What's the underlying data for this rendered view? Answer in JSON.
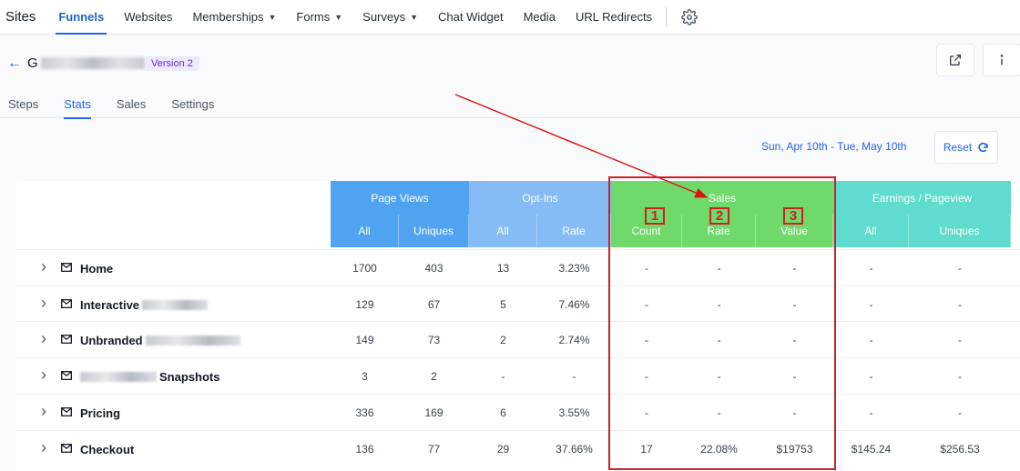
{
  "nav": {
    "brand": "Sites",
    "items": [
      {
        "label": "Funnels",
        "active": true,
        "dropdown": false
      },
      {
        "label": "Websites",
        "active": false,
        "dropdown": false
      },
      {
        "label": "Memberships",
        "active": false,
        "dropdown": true
      },
      {
        "label": "Forms",
        "active": false,
        "dropdown": true
      },
      {
        "label": "Surveys",
        "active": false,
        "dropdown": true
      },
      {
        "label": "Chat Widget",
        "active": false,
        "dropdown": false
      },
      {
        "label": "Media",
        "active": false,
        "dropdown": false
      },
      {
        "label": "URL Redirects",
        "active": false,
        "dropdown": false
      }
    ],
    "settings_icon": "gear-icon"
  },
  "header": {
    "back_icon": "arrow-left-icon",
    "funnel_name_initial": "G",
    "version_badge": "Version 2",
    "external_icon": "external-link-icon",
    "info_icon": "info-icon"
  },
  "subtabs": [
    {
      "label": "Steps",
      "active": false
    },
    {
      "label": "Stats",
      "active": true
    },
    {
      "label": "Sales",
      "active": false
    },
    {
      "label": "Settings",
      "active": false
    }
  ],
  "filters": {
    "date_range": "Sun, Apr 10th - Tue, May 10th",
    "reset_label": "Reset",
    "reset_icon": "refresh-icon"
  },
  "table": {
    "groups": [
      {
        "label": "Page Views",
        "color": "#4fa3f0",
        "sub": [
          "All",
          "Uniques"
        ]
      },
      {
        "label": "Opt-Ins",
        "color": "#86bcf5",
        "sub": [
          "All",
          "Rate"
        ]
      },
      {
        "label": "Sales",
        "color": "#6fd96a",
        "sub": [
          "Count",
          "Rate",
          "Value"
        ]
      },
      {
        "label": "Earnings / Pageview",
        "color": "#5fdccd",
        "sub": [
          "All",
          "Uniques"
        ]
      }
    ],
    "rows": [
      {
        "name": "Home",
        "values": [
          "1700",
          "403",
          "13",
          "3.23%",
          "-",
          "-",
          "-",
          "-",
          "-"
        ]
      },
      {
        "name": "Interactive",
        "values": [
          "129",
          "67",
          "5",
          "7.46%",
          "-",
          "-",
          "-",
          "-",
          "-"
        ]
      },
      {
        "name": "Unbranded",
        "values": [
          "149",
          "73",
          "2",
          "2.74%",
          "-",
          "-",
          "-",
          "-",
          "-"
        ]
      },
      {
        "name": "Snapshots",
        "values": [
          "3",
          "2",
          "-",
          "-",
          "-",
          "-",
          "-",
          "-",
          "-"
        ]
      },
      {
        "name": "Pricing",
        "values": [
          "336",
          "169",
          "6",
          "3.55%",
          "-",
          "-",
          "-",
          "-",
          "-"
        ]
      },
      {
        "name": "Checkout",
        "values": [
          "136",
          "77",
          "29",
          "37.66%",
          "17",
          "22.08%",
          "$19753",
          "$145.24",
          "$256.53"
        ]
      }
    ]
  },
  "annotations": {
    "markers": [
      "1",
      "2",
      "3"
    ],
    "color": "#cc2222"
  }
}
